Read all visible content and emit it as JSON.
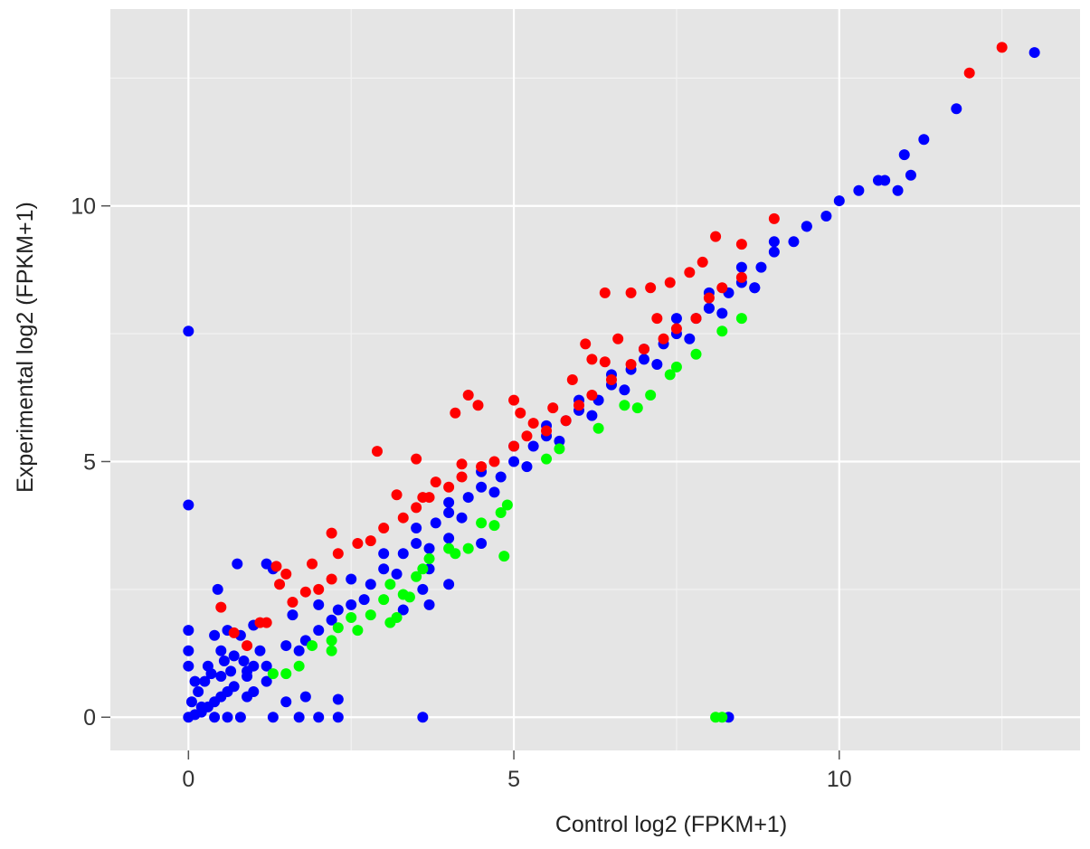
{
  "chart_data": {
    "type": "scatter",
    "title": "",
    "xlabel": "Control log2 (FPKM+1)",
    "ylabel": "Experimental log2 (FPKM+1)",
    "xlim": [
      -1.2,
      13.7
    ],
    "ylim": [
      -0.65,
      13.85
    ],
    "x_ticks": [
      {
        "v": 0,
        "label": "0"
      },
      {
        "v": 5,
        "label": "5"
      },
      {
        "v": 10,
        "label": "10"
      }
    ],
    "y_ticks": [
      {
        "v": 0,
        "label": "0"
      },
      {
        "v": 5,
        "label": "5"
      },
      {
        "v": 10,
        "label": "10"
      }
    ],
    "grid": true,
    "legend": "none",
    "colors": {
      "panel_background": "#e5e5e5",
      "grid_major": "#ffffff",
      "grid_minor": "#f2f2f2",
      "up_regulated": "#ff0000",
      "not_significant": "#0000ff",
      "down_regulated": "#00ff00"
    },
    "series": [
      {
        "color": "#0000ff",
        "points": [
          [
            0,
            0
          ],
          [
            0.1,
            0.05
          ],
          [
            0.2,
            0.1
          ],
          [
            0.3,
            0.2
          ],
          [
            0.4,
            0.3
          ],
          [
            0.5,
            0.4
          ],
          [
            0.6,
            0.5
          ],
          [
            0.05,
            0.3
          ],
          [
            0.15,
            0.5
          ],
          [
            0.25,
            0.7
          ],
          [
            0,
            1.0
          ],
          [
            0,
            1.3
          ],
          [
            0,
            1.7
          ],
          [
            0.3,
            1.0
          ],
          [
            0.5,
            0.8
          ],
          [
            0.7,
            0.6
          ],
          [
            0.9,
            0.8
          ],
          [
            0.5,
            1.3
          ],
          [
            0.7,
            1.2
          ],
          [
            0.8,
            1.6
          ],
          [
            0.4,
            0
          ],
          [
            0.6,
            0
          ],
          [
            0.8,
            0
          ],
          [
            0.9,
            0.4
          ],
          [
            1.0,
            1.0
          ],
          [
            1.2,
            1.0
          ],
          [
            1.5,
            1.4
          ],
          [
            1.3,
            0
          ],
          [
            1.5,
            0.3
          ],
          [
            1.7,
            1.3
          ],
          [
            2.0,
            1.7
          ],
          [
            2.3,
            2.1
          ],
          [
            2.5,
            2.2
          ],
          [
            2.8,
            2.6
          ],
          [
            3.0,
            2.9
          ],
          [
            3.3,
            3.2
          ],
          [
            3.5,
            3.4
          ],
          [
            3.8,
            3.8
          ],
          [
            4.0,
            4.0
          ],
          [
            4.3,
            4.3
          ],
          [
            4.5,
            4.5
          ],
          [
            4.8,
            4.7
          ],
          [
            5.0,
            5.0
          ],
          [
            5.3,
            5.3
          ],
          [
            5.5,
            5.5
          ],
          [
            5.8,
            5.8
          ],
          [
            6.0,
            6.0
          ],
          [
            6.3,
            6.2
          ],
          [
            6.5,
            6.5
          ],
          [
            6.8,
            6.8
          ],
          [
            7.0,
            7.0
          ],
          [
            7.3,
            7.3
          ],
          [
            7.5,
            7.5
          ],
          [
            7.8,
            7.8
          ],
          [
            8.0,
            8.0
          ],
          [
            8.3,
            8.3
          ],
          [
            8.5,
            8.5
          ],
          [
            8.8,
            8.8
          ],
          [
            9.0,
            9.1
          ],
          [
            9.3,
            9.3
          ],
          [
            9.5,
            9.6
          ],
          [
            9.8,
            9.8
          ],
          [
            10.0,
            10.1
          ],
          [
            10.3,
            10.3
          ],
          [
            10.6,
            10.5
          ],
          [
            11.0,
            11.0
          ],
          [
            11.3,
            11.3
          ],
          [
            11.8,
            11.9
          ],
          [
            13.0,
            13.0
          ],
          [
            1.8,
            1.5
          ],
          [
            2.2,
            1.9
          ],
          [
            2.7,
            2.3
          ],
          [
            3.2,
            2.8
          ],
          [
            3.7,
            3.3
          ],
          [
            4.2,
            3.9
          ],
          [
            4.7,
            4.4
          ],
          [
            5.2,
            4.9
          ],
          [
            5.7,
            5.4
          ],
          [
            6.2,
            5.9
          ],
          [
            6.7,
            6.4
          ],
          [
            7.2,
            6.9
          ],
          [
            7.7,
            7.4
          ],
          [
            8.2,
            7.9
          ],
          [
            8.7,
            8.4
          ],
          [
            2.0,
            2.2
          ],
          [
            2.5,
            2.7
          ],
          [
            3.0,
            3.2
          ],
          [
            3.5,
            3.7
          ],
          [
            4.0,
            4.2
          ],
          [
            4.5,
            4.8
          ],
          [
            5.0,
            5.3
          ],
          [
            5.5,
            5.7
          ],
          [
            6.0,
            6.2
          ],
          [
            6.5,
            6.7
          ],
          [
            7.0,
            7.2
          ],
          [
            7.5,
            7.8
          ],
          [
            8.0,
            8.3
          ],
          [
            8.5,
            8.8
          ],
          [
            9.0,
            9.3
          ],
          [
            0,
            7.55
          ],
          [
            0,
            4.15
          ],
          [
            0.45,
            2.5
          ],
          [
            0.75,
            3.0
          ],
          [
            1.2,
            3.0
          ],
          [
            1.3,
            2.9
          ],
          [
            1.0,
            1.8
          ],
          [
            1.6,
            2.0
          ],
          [
            1.8,
            0.4
          ],
          [
            2.0,
            0.0
          ],
          [
            1.7,
            0.0
          ],
          [
            2.3,
            0.0
          ],
          [
            3.6,
            0.0
          ],
          [
            8.3,
            0.0
          ],
          [
            2.3,
            0.35
          ],
          [
            0.9,
            0.9
          ],
          [
            1.1,
            1.3
          ],
          [
            3.3,
            2.1
          ],
          [
            3.6,
            2.5
          ],
          [
            3.7,
            2.2
          ],
          [
            4.0,
            2.6
          ],
          [
            4.5,
            3.4
          ],
          [
            4.0,
            3.5
          ],
          [
            3.7,
            2.9
          ],
          [
            10.7,
            10.5
          ],
          [
            10.9,
            10.3
          ],
          [
            11.1,
            10.6
          ],
          [
            9.5,
            9.6
          ],
          [
            8.7,
            8.4
          ],
          [
            8.0,
            8.0
          ],
          [
            0.2,
            0.2
          ],
          [
            0.1,
            0.7
          ],
          [
            0.35,
            0.85
          ],
          [
            0.55,
            1.1
          ],
          [
            0.65,
            0.9
          ],
          [
            0.85,
            1.1
          ],
          [
            1.0,
            0.5
          ],
          [
            1.2,
            0.7
          ],
          [
            0.4,
            1.6
          ],
          [
            0.6,
            1.7
          ]
        ]
      },
      {
        "color": "#ff0000",
        "points": [
          [
            0.5,
            2.15
          ],
          [
            0.7,
            1.65
          ],
          [
            0.9,
            1.4
          ],
          [
            1.1,
            1.85
          ],
          [
            1.2,
            1.85
          ],
          [
            1.4,
            2.6
          ],
          [
            1.5,
            2.8
          ],
          [
            1.6,
            2.25
          ],
          [
            1.8,
            2.45
          ],
          [
            2.0,
            2.5
          ],
          [
            1.9,
            3.0
          ],
          [
            2.2,
            2.7
          ],
          [
            2.3,
            3.2
          ],
          [
            2.6,
            3.4
          ],
          [
            2.8,
            3.45
          ],
          [
            3.0,
            3.7
          ],
          [
            3.3,
            3.9
          ],
          [
            3.5,
            4.1
          ],
          [
            3.7,
            4.3
          ],
          [
            4.0,
            4.5
          ],
          [
            4.2,
            4.7
          ],
          [
            4.5,
            4.9
          ],
          [
            4.7,
            5.0
          ],
          [
            5.0,
            5.3
          ],
          [
            5.2,
            5.5
          ],
          [
            5.5,
            5.6
          ],
          [
            5.8,
            5.8
          ],
          [
            6.0,
            6.1
          ],
          [
            6.2,
            6.3
          ],
          [
            6.5,
            6.6
          ],
          [
            6.8,
            6.9
          ],
          [
            7.0,
            7.2
          ],
          [
            7.3,
            7.4
          ],
          [
            7.5,
            7.6
          ],
          [
            7.8,
            7.8
          ],
          [
            8.0,
            8.2
          ],
          [
            8.2,
            8.4
          ],
          [
            8.5,
            8.6
          ],
          [
            2.9,
            5.2
          ],
          [
            3.5,
            5.05
          ],
          [
            3.6,
            4.3
          ],
          [
            3.8,
            4.6
          ],
          [
            4.1,
            5.95
          ],
          [
            4.3,
            6.3
          ],
          [
            4.45,
            6.1
          ],
          [
            5.0,
            6.2
          ],
          [
            5.1,
            5.95
          ],
          [
            6.1,
            7.3
          ],
          [
            6.2,
            7.0
          ],
          [
            6.4,
            8.3
          ],
          [
            6.8,
            8.3
          ],
          [
            7.1,
            8.4
          ],
          [
            7.4,
            8.5
          ],
          [
            7.7,
            8.7
          ],
          [
            7.9,
            8.9
          ],
          [
            8.1,
            9.4
          ],
          [
            8.5,
            9.25
          ],
          [
            9.0,
            9.75
          ],
          [
            12.0,
            12.6
          ],
          [
            12.5,
            13.1
          ],
          [
            1.35,
            2.95
          ],
          [
            2.2,
            3.6
          ],
          [
            3.2,
            4.35
          ],
          [
            4.2,
            4.95
          ],
          [
            5.3,
            5.75
          ],
          [
            5.6,
            6.05
          ],
          [
            5.9,
            6.6
          ],
          [
            6.4,
            6.95
          ],
          [
            6.6,
            7.4
          ],
          [
            7.2,
            7.8
          ]
        ]
      },
      {
        "color": "#00ff00",
        "points": [
          [
            1.3,
            0.85
          ],
          [
            1.5,
            0.85
          ],
          [
            1.7,
            1.0
          ],
          [
            1.9,
            1.4
          ],
          [
            2.2,
            1.5
          ],
          [
            2.3,
            1.75
          ],
          [
            2.5,
            1.95
          ],
          [
            2.6,
            1.7
          ],
          [
            2.8,
            2.0
          ],
          [
            3.0,
            2.3
          ],
          [
            3.1,
            2.6
          ],
          [
            3.2,
            1.95
          ],
          [
            3.3,
            2.4
          ],
          [
            3.4,
            2.35
          ],
          [
            3.5,
            2.75
          ],
          [
            3.6,
            2.9
          ],
          [
            3.7,
            3.1
          ],
          [
            4.0,
            3.3
          ],
          [
            4.1,
            3.2
          ],
          [
            4.3,
            3.3
          ],
          [
            4.5,
            3.8
          ],
          [
            4.7,
            3.75
          ],
          [
            4.8,
            4.0
          ],
          [
            4.85,
            3.15
          ],
          [
            4.9,
            4.15
          ],
          [
            5.5,
            5.05
          ],
          [
            5.7,
            5.25
          ],
          [
            6.3,
            5.65
          ],
          [
            6.7,
            6.1
          ],
          [
            6.9,
            6.05
          ],
          [
            7.1,
            6.3
          ],
          [
            7.4,
            6.7
          ],
          [
            7.5,
            6.85
          ],
          [
            7.8,
            7.1
          ],
          [
            8.2,
            7.55
          ],
          [
            8.5,
            7.8
          ],
          [
            8.1,
            0.0
          ],
          [
            8.2,
            0.0
          ],
          [
            3.1,
            1.85
          ],
          [
            2.2,
            1.3
          ]
        ]
      }
    ]
  }
}
